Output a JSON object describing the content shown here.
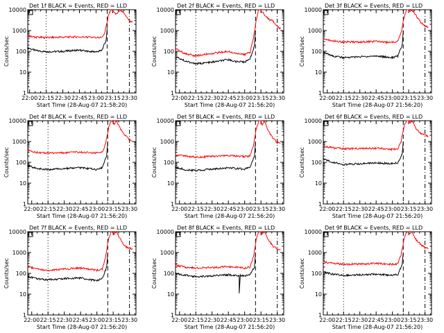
{
  "figure": {
    "background": "#ffffff",
    "colors": {
      "events": "#000000",
      "lld": "#ff0000",
      "axes": "#000000"
    }
  },
  "chart_data": [
    {
      "type": "line",
      "title": "Det 1f BLACK = Events, RED = LLD",
      "xlabel": "Start Time (28-Aug-07 21:58:20)",
      "ylabel": "Counts/sec",
      "y_scale": "log",
      "ylim": [
        1,
        10000
      ],
      "y_ticks": [
        "1",
        "10",
        "100",
        "1000",
        "10000"
      ],
      "x_ticks": [
        "22:00",
        "22:15",
        "22:30",
        "22:45",
        "23:00",
        "23:15",
        "23:30"
      ],
      "x_range": [
        "21:58:20",
        "23:36:00"
      ],
      "vlines": [
        {
          "x": "22:15",
          "style": "dotted"
        },
        {
          "x": "23:10",
          "style": "dashed"
        },
        {
          "x": "23:30",
          "style": "dashdot"
        }
      ],
      "series": [
        {
          "name": "Events",
          "color": "#000000",
          "x": [
            "21:58",
            "22:05",
            "22:15",
            "22:30",
            "22:45",
            "22:52",
            "23:00",
            "23:05",
            "23:09",
            "23:10"
          ],
          "y": [
            150,
            110,
            95,
            100,
            115,
            100,
            95,
            110,
            320,
            1300
          ]
        },
        {
          "name": "LLD",
          "color": "#ff0000",
          "x": [
            "21:58",
            "22:05",
            "22:15",
            "22:30",
            "22:45",
            "22:52",
            "23:00",
            "23:05",
            "23:08",
            "23:11",
            "23:13",
            "23:15",
            "23:16",
            "23:18",
            "23:22",
            "23:26",
            "23:30",
            "23:33"
          ],
          "y": [
            550,
            480,
            460,
            480,
            500,
            480,
            450,
            470,
            800,
            5000,
            10000,
            10000,
            8000,
            6000,
            10000,
            6000,
            3000,
            2500
          ]
        }
      ]
    },
    {
      "type": "line",
      "title": "Det 2f BLACK = Events, RED = LLD",
      "xlabel": "Start Time (28-Aug-07 21:56:20)",
      "ylabel": "Counts/sec",
      "y_scale": "log",
      "ylim": [
        1,
        10000
      ],
      "y_ticks": [
        "1",
        "10",
        "100",
        "1000",
        "10000"
      ],
      "x_ticks": [
        "22:00",
        "22:15",
        "22:30",
        "22:45",
        "23:00",
        "23:15",
        "23:30"
      ],
      "x_range": [
        "21:56:20",
        "23:36:00"
      ],
      "vlines": [
        {
          "x": "22:15",
          "style": "dotted"
        },
        {
          "x": "23:10",
          "style": "dashed"
        },
        {
          "x": "23:30",
          "style": "dashdot"
        }
      ],
      "series": [
        {
          "name": "Events",
          "color": "#000000",
          "x": [
            "21:56",
            "22:05",
            "22:15",
            "22:30",
            "22:45",
            "22:52",
            "23:00",
            "23:05",
            "23:09",
            "23:10"
          ],
          "y": [
            55,
            35,
            25,
            30,
            40,
            32,
            30,
            45,
            180,
            1000
          ]
        },
        {
          "name": "LLD",
          "color": "#ff0000",
          "x": [
            "21:56",
            "22:05",
            "22:15",
            "22:30",
            "22:45",
            "22:52",
            "23:00",
            "23:05",
            "23:08",
            "23:11",
            "23:13",
            "23:15",
            "23:16",
            "23:18",
            "23:22",
            "23:26",
            "23:30",
            "23:33"
          ],
          "y": [
            130,
            80,
            60,
            80,
            100,
            80,
            70,
            90,
            400,
            4000,
            10000,
            10000,
            8000,
            6000,
            3500,
            3000,
            1500,
            1200
          ]
        }
      ]
    },
    {
      "type": "line",
      "title": "Det 3f BLACK = Events, RED = LLD",
      "xlabel": "Start Time (28-Aug-07 21:56:20)",
      "ylabel": "Counts/sec",
      "y_scale": "log",
      "ylim": [
        1,
        10000
      ],
      "y_ticks": [
        "1",
        "10",
        "100",
        "1000",
        "10000"
      ],
      "x_ticks": [
        "22:00",
        "22:15",
        "22:30",
        "22:45",
        "23:00",
        "23:15",
        "23:30"
      ],
      "x_range": [
        "21:56:20",
        "23:36:00"
      ],
      "vlines": [
        {
          "x": "22:15",
          "style": "dotted"
        },
        {
          "x": "23:10",
          "style": "dashed"
        },
        {
          "x": "23:30",
          "style": "dashdot"
        }
      ],
      "series": [
        {
          "name": "Events",
          "color": "#000000",
          "x": [
            "21:56",
            "22:05",
            "22:15",
            "22:30",
            "22:45",
            "22:52",
            "23:00",
            "23:05",
            "23:09",
            "23:10"
          ],
          "y": [
            90,
            60,
            50,
            55,
            60,
            55,
            50,
            60,
            200,
            1000
          ]
        },
        {
          "name": "LLD",
          "color": "#ff0000",
          "x": [
            "21:56",
            "22:05",
            "22:15",
            "22:30",
            "22:45",
            "22:52",
            "23:00",
            "23:05",
            "23:08",
            "23:11",
            "23:13",
            "23:15",
            "23:16",
            "23:18",
            "23:22",
            "23:26",
            "23:30",
            "23:33"
          ],
          "y": [
            400,
            320,
            280,
            280,
            300,
            280,
            270,
            300,
            800,
            5000,
            10000,
            10000,
            8000,
            10000,
            5000,
            2500,
            1600,
            1500
          ]
        }
      ]
    },
    {
      "type": "line",
      "title": "Det 4f BLACK = Events, RED = LLD",
      "xlabel": "Start Time (28-Aug-07 21:56:20)",
      "ylabel": "Counts/sec",
      "y_scale": "log",
      "ylim": [
        1,
        10000
      ],
      "y_ticks": [
        "1",
        "10",
        "100",
        "1000",
        "10000"
      ],
      "x_ticks": [
        "22:00",
        "22:15",
        "22:30",
        "22:45",
        "23:00",
        "23:15",
        "23:30"
      ],
      "x_range": [
        "21:56:20",
        "23:36:00"
      ],
      "vlines": [
        {
          "x": "22:15",
          "style": "dotted"
        },
        {
          "x": "23:10",
          "style": "dashed"
        },
        {
          "x": "23:30",
          "style": "dashdot"
        }
      ],
      "series": [
        {
          "name": "Events",
          "color": "#000000",
          "x": [
            "21:56",
            "22:05",
            "22:15",
            "22:30",
            "22:45",
            "22:52",
            "23:00",
            "23:05",
            "23:09",
            "23:10"
          ],
          "y": [
            70,
            50,
            45,
            50,
            55,
            50,
            45,
            55,
            200,
            1000
          ]
        },
        {
          "name": "LLD",
          "color": "#ff0000",
          "x": [
            "21:56",
            "22:05",
            "22:15",
            "22:30",
            "22:45",
            "22:52",
            "23:00",
            "23:05",
            "23:08",
            "23:11",
            "23:13",
            "23:15",
            "23:16",
            "23:18",
            "23:22",
            "23:26",
            "23:30",
            "23:33"
          ],
          "y": [
            350,
            300,
            280,
            290,
            310,
            300,
            280,
            300,
            800,
            5000,
            10000,
            10000,
            6000,
            10000,
            4000,
            2000,
            1200,
            1000
          ]
        }
      ]
    },
    {
      "type": "line",
      "title": "Det 5f BLACK = Events, RED = LLD",
      "xlabel": "Start Time (28-Aug-07 21:56:20)",
      "ylabel": "Counts/sec",
      "y_scale": "log",
      "ylim": [
        1,
        10000
      ],
      "y_ticks": [
        "1",
        "10",
        "100",
        "1000",
        "10000"
      ],
      "x_ticks": [
        "22:00",
        "22:15",
        "22:30",
        "22:45",
        "23:00",
        "23:15",
        "23:30"
      ],
      "x_range": [
        "21:56:20",
        "23:36:00"
      ],
      "vlines": [
        {
          "x": "22:15",
          "style": "dotted"
        },
        {
          "x": "23:10",
          "style": "dashed"
        },
        {
          "x": "23:30",
          "style": "dashdot"
        }
      ],
      "series": [
        {
          "name": "Events",
          "color": "#000000",
          "x": [
            "21:56",
            "22:05",
            "22:15",
            "22:30",
            "22:45",
            "22:52",
            "23:00",
            "23:05",
            "23:09",
            "23:10"
          ],
          "y": [
            60,
            45,
            40,
            48,
            55,
            50,
            48,
            55,
            200,
            1000
          ]
        },
        {
          "name": "LLD",
          "color": "#ff0000",
          "x": [
            "21:56",
            "22:05",
            "22:15",
            "22:30",
            "22:45",
            "22:52",
            "23:00",
            "23:05",
            "23:08",
            "23:11",
            "23:13",
            "23:15",
            "23:16",
            "23:18",
            "23:22",
            "23:26",
            "23:30",
            "23:33"
          ],
          "y": [
            230,
            200,
            180,
            190,
            210,
            200,
            190,
            200,
            600,
            5000,
            10000,
            10000,
            6000,
            10000,
            3000,
            1500,
            900,
            800
          ]
        }
      ]
    },
    {
      "type": "line",
      "title": "Det 6f BLACK = Events, RED = LLD",
      "xlabel": "Start Time (28-Aug-07 21:56:20)",
      "ylabel": "Counts/sec",
      "y_scale": "log",
      "ylim": [
        1,
        10000
      ],
      "y_ticks": [
        "1",
        "10",
        "100",
        "1000",
        "10000"
      ],
      "x_ticks": [
        "22:00",
        "22:15",
        "22:30",
        "22:45",
        "23:00",
        "23:15",
        "23:30"
      ],
      "x_range": [
        "21:56:20",
        "23:36:00"
      ],
      "vlines": [
        {
          "x": "22:15",
          "style": "dotted"
        },
        {
          "x": "23:10",
          "style": "dashed"
        },
        {
          "x": "23:30",
          "style": "dashdot"
        }
      ],
      "series": [
        {
          "name": "Events",
          "color": "#000000",
          "x": [
            "21:56",
            "22:05",
            "22:15",
            "22:30",
            "22:45",
            "22:52",
            "23:00",
            "23:05",
            "23:09",
            "23:10"
          ],
          "y": [
            150,
            100,
            80,
            85,
            95,
            90,
            85,
            95,
            250,
            1000
          ]
        },
        {
          "name": "LLD",
          "color": "#ff0000",
          "x": [
            "21:56",
            "22:05",
            "22:15",
            "22:30",
            "22:45",
            "22:52",
            "23:00",
            "23:05",
            "23:08",
            "23:11",
            "23:13",
            "23:15",
            "23:16",
            "23:18",
            "23:22",
            "23:26",
            "23:30",
            "23:33"
          ],
          "y": [
            600,
            500,
            450,
            460,
            480,
            450,
            420,
            450,
            1000,
            6000,
            10000,
            10000,
            8000,
            10000,
            4000,
            2500,
            2000,
            1800
          ]
        }
      ]
    },
    {
      "type": "line",
      "title": "Det 7f BLACK = Events, RED = LLD",
      "xlabel": "Start Time (28-Aug-07 21:56:20)",
      "ylabel": "Counts/sec",
      "y_scale": "log",
      "ylim": [
        1,
        10000
      ],
      "y_ticks": [
        "1",
        "10",
        "100",
        "1000",
        "10000"
      ],
      "x_ticks": [
        "22:00",
        "22:15",
        "22:30",
        "22:45",
        "23:00",
        "23:15",
        "23:30"
      ],
      "x_range": [
        "21:56:20",
        "23:36:00"
      ],
      "vlines": [
        {
          "x": "22:15",
          "style": "dotted"
        },
        {
          "x": "23:10",
          "style": "dashed"
        },
        {
          "x": "23:30",
          "style": "dashdot"
        }
      ],
      "series": [
        {
          "name": "Events",
          "color": "#000000",
          "x": [
            "21:56",
            "22:05",
            "22:15",
            "22:30",
            "22:45",
            "22:52",
            "23:00",
            "23:05",
            "23:09",
            "23:10"
          ],
          "y": [
            70,
            55,
            50,
            55,
            60,
            50,
            45,
            55,
            200,
            1000
          ]
        },
        {
          "name": "LLD",
          "color": "#ff0000",
          "x": [
            "21:56",
            "22:05",
            "22:15",
            "22:30",
            "22:45",
            "22:52",
            "23:00",
            "23:05",
            "23:08",
            "23:11",
            "23:13",
            "23:15",
            "23:16",
            "23:18",
            "23:22",
            "23:26",
            "23:30",
            "23:33"
          ],
          "y": [
            220,
            160,
            140,
            160,
            180,
            160,
            140,
            160,
            600,
            5000,
            10000,
            10000,
            8000,
            10000,
            4000,
            2000,
            1600,
            1500
          ]
        }
      ]
    },
    {
      "type": "line",
      "title": "Det 8f BLACK = Events, RED = LLD",
      "xlabel": "Start Time (28-Aug-07 21:56:20)",
      "ylabel": "Counts/sec",
      "y_scale": "log",
      "ylim": [
        1,
        10000
      ],
      "y_ticks": [
        "1",
        "10",
        "100",
        "1000",
        "10000"
      ],
      "x_ticks": [
        "22:00",
        "22:15",
        "22:30",
        "22:45",
        "23:00",
        "23:15",
        "23:30"
      ],
      "x_range": [
        "21:56:20",
        "23:36:00"
      ],
      "vlines": [
        {
          "x": "22:15",
          "style": "dotted"
        },
        {
          "x": "23:10",
          "style": "dashed"
        },
        {
          "x": "23:30",
          "style": "dashdot"
        }
      ],
      "series": [
        {
          "name": "Events",
          "color": "#000000",
          "x": [
            "21:56",
            "22:05",
            "22:15",
            "22:30",
            "22:45",
            "22:52",
            "22:55",
            "22:55",
            "22:56",
            "23:00",
            "23:05",
            "23:09",
            "23:10"
          ],
          "y": [
            100,
            80,
            70,
            75,
            85,
            80,
            80,
            10,
            80,
            75,
            90,
            200,
            1000
          ]
        },
        {
          "name": "LLD",
          "color": "#ff0000",
          "x": [
            "21:56",
            "22:05",
            "22:15",
            "22:30",
            "22:45",
            "22:52",
            "23:00",
            "23:05",
            "23:08",
            "23:11",
            "23:13",
            "23:15",
            "23:16",
            "23:18",
            "23:22",
            "23:26",
            "23:30",
            "23:33"
          ],
          "y": [
            250,
            200,
            180,
            190,
            210,
            200,
            180,
            200,
            600,
            5000,
            10000,
            10000,
            8000,
            10000,
            4000,
            2000,
            1500,
            1300
          ]
        }
      ]
    },
    {
      "type": "line",
      "title": "Det 9f BLACK = Events, RED = LLD",
      "xlabel": "Start Time (28-Aug-07 21:56:20)",
      "ylabel": "Counts/sec",
      "y_scale": "log",
      "ylim": [
        1,
        10000
      ],
      "y_ticks": [
        "1",
        "10",
        "100",
        "1000",
        "10000"
      ],
      "x_ticks": [
        "22:00",
        "22:15",
        "22:30",
        "22:45",
        "23:00",
        "23:15",
        "23:30"
      ],
      "x_range": [
        "21:56:20",
        "23:36:00"
      ],
      "vlines": [
        {
          "x": "22:15",
          "style": "dotted"
        },
        {
          "x": "23:10",
          "style": "dashed"
        },
        {
          "x": "23:30",
          "style": "dashdot"
        }
      ],
      "series": [
        {
          "name": "Events",
          "color": "#000000",
          "x": [
            "21:56",
            "22:05",
            "22:15",
            "22:30",
            "22:45",
            "22:52",
            "23:00",
            "23:05",
            "23:09",
            "23:10"
          ],
          "y": [
            120,
            90,
            80,
            85,
            90,
            85,
            80,
            90,
            250,
            1000
          ]
        },
        {
          "name": "LLD",
          "color": "#ff0000",
          "x": [
            "21:56",
            "22:05",
            "22:15",
            "22:30",
            "22:45",
            "22:52",
            "23:00",
            "23:05",
            "23:08",
            "23:11",
            "23:13",
            "23:15",
            "23:16",
            "23:18",
            "23:22",
            "23:26",
            "23:30",
            "23:33"
          ],
          "y": [
            350,
            300,
            270,
            280,
            300,
            290,
            270,
            290,
            800,
            5000,
            10000,
            10000,
            8000,
            10000,
            4000,
            2500,
            1700,
            1500
          ]
        }
      ]
    }
  ]
}
